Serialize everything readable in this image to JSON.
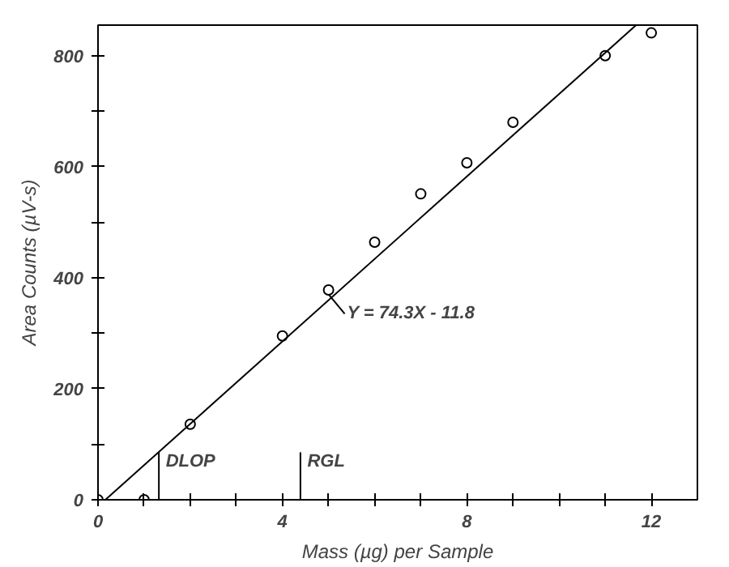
{
  "chart_data": {
    "type": "scatter",
    "xlabel": "Mass (µg) per Sample",
    "ylabel": "Area Counts (µV-s)",
    "x": [
      0,
      1,
      2,
      4,
      5,
      6,
      7,
      8,
      9,
      11,
      12
    ],
    "series": [
      {
        "color": "#000000",
        "marker": "circle",
        "values": [
          0,
          0,
          136,
          295,
          378,
          464,
          551,
          607,
          680,
          800,
          841
        ]
      },
      {
        "type": "line",
        "color": "#000000",
        "marker": "none",
        "line_style": "solid",
        "x": [
          0.16,
          11.67
        ],
        "values": [
          0,
          855
        ]
      }
    ],
    "annotations": [
      {
        "text": "Y = 74.3X - 11.8",
        "x": 5,
        "y": 360
      }
    ],
    "ref_lines": [
      {
        "axis": "x",
        "value": 1.32,
        "label": "DLOP"
      },
      {
        "axis": "x",
        "value": 4.39,
        "label": "RGL"
      }
    ],
    "xlim": [
      0,
      13
    ],
    "ylim": [
      0,
      855
    ],
    "xticks": [
      0,
      {
        "value": 1,
        "label": null
      },
      {
        "value": 2,
        "label": null
      },
      {
        "value": 3,
        "label": null
      },
      4,
      {
        "value": 5,
        "label": null
      },
      {
        "value": 6,
        "label": null
      },
      {
        "value": 7,
        "label": null
      },
      8,
      {
        "value": 9,
        "label": null
      },
      {
        "value": 10,
        "label": null
      },
      {
        "value": 11,
        "label": null
      },
      12
    ],
    "yticks": [
      0,
      {
        "value": 100,
        "label": null
      },
      200,
      {
        "value": 300,
        "label": null
      },
      400,
      {
        "value": 500,
        "label": null
      },
      600,
      {
        "value": 700,
        "label": null
      },
      800
    ],
    "grid": false
  }
}
